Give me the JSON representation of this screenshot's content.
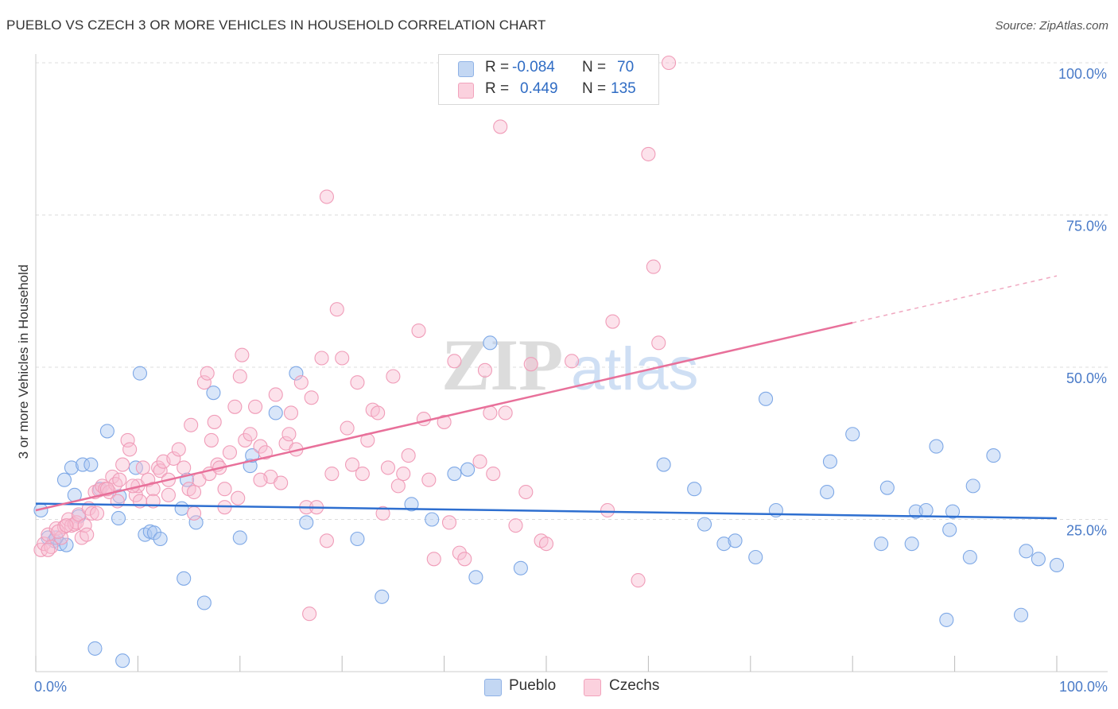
{
  "header": {
    "title": "PUEBLO VS CZECH 3 OR MORE VEHICLES IN HOUSEHOLD CORRELATION CHART",
    "source": "Source: ZipAtlas.com"
  },
  "watermark": {
    "zip": "ZIP",
    "atlas": "atlas"
  },
  "legend_box": {
    "rows": [
      {
        "r_label": "R =",
        "r_value": "-0.084",
        "n_label": "N =",
        "n_value": "70",
        "color": "#a9c6f0"
      },
      {
        "r_label": "R =",
        "r_value": "0.449",
        "n_label": "N =",
        "n_value": "135",
        "color": "#f5b4c7"
      }
    ]
  },
  "bottom_legend": {
    "items": [
      "Pueblo",
      "Czechs"
    ]
  },
  "chart_data": {
    "type": "scatter",
    "title": "PUEBLO VS CZECH 3 OR MORE VEHICLES IN HOUSEHOLD CORRELATION CHART",
    "xlabel": "",
    "ylabel": "3 or more Vehicles in Household",
    "xlim": [
      0,
      100
    ],
    "ylim": [
      0,
      100
    ],
    "x_tick_labels": [
      "0.0%",
      "100.0%"
    ],
    "y_tick_labels": [
      "25.0%",
      "50.0%",
      "75.0%",
      "100.0%"
    ],
    "y_ticks": [
      25,
      50,
      75,
      100
    ],
    "grid": true,
    "legend_position": "top-center",
    "colors": {
      "pueblo": "#6f9fe0",
      "pueblo_line": "#2e6fd0",
      "czechs": "#f08cab",
      "czechs_line": "#e8709a"
    },
    "series": [
      {
        "name": "Pueblo",
        "r": -0.084,
        "n": 70,
        "trend": {
          "x": [
            0,
            100
          ],
          "y": [
            27.6,
            25.2
          ]
        },
        "points": [
          [
            0.5,
            26.5
          ],
          [
            1.2,
            22
          ],
          [
            1.8,
            21.5
          ],
          [
            2.4,
            21
          ],
          [
            2.8,
            31.5
          ],
          [
            3.0,
            20.8
          ],
          [
            3.5,
            33.5
          ],
          [
            3.8,
            29
          ],
          [
            4.2,
            25.5
          ],
          [
            4.6,
            34
          ],
          [
            5.4,
            34
          ],
          [
            6.3,
            30
          ],
          [
            7.0,
            39.5
          ],
          [
            8.1,
            25.2
          ],
          [
            8.2,
            28.8
          ],
          [
            9.8,
            33.5
          ],
          [
            10.2,
            49
          ],
          [
            10.7,
            22.5
          ],
          [
            11.2,
            23
          ],
          [
            11.6,
            22.8
          ],
          [
            12.2,
            21.8
          ],
          [
            14.3,
            26.8
          ],
          [
            14.5,
            15.3
          ],
          [
            14.8,
            31.5
          ],
          [
            15.7,
            24.5
          ],
          [
            16.5,
            11.3
          ],
          [
            17.4,
            45.8
          ],
          [
            20.0,
            22
          ],
          [
            21.0,
            33.8
          ],
          [
            21.2,
            35.5
          ],
          [
            23.5,
            42.5
          ],
          [
            25.5,
            49
          ],
          [
            26.5,
            24.5
          ],
          [
            31.5,
            21.8
          ],
          [
            33.9,
            12.3
          ],
          [
            36.8,
            27.5
          ],
          [
            38.8,
            25
          ],
          [
            41.0,
            32.5
          ],
          [
            42.3,
            33.2
          ],
          [
            43.1,
            15.5
          ],
          [
            44.5,
            54
          ],
          [
            47.5,
            17
          ],
          [
            61.5,
            34
          ],
          [
            64.5,
            30
          ],
          [
            65.5,
            24.2
          ],
          [
            67.4,
            21
          ],
          [
            68.5,
            21.5
          ],
          [
            70.5,
            18.8
          ],
          [
            71.5,
            44.8
          ],
          [
            72.5,
            26.5
          ],
          [
            77.5,
            29.5
          ],
          [
            77.8,
            34.5
          ],
          [
            80.0,
            39
          ],
          [
            82.8,
            21
          ],
          [
            83.4,
            30.2
          ],
          [
            85.8,
            21
          ],
          [
            86.2,
            26.3
          ],
          [
            87.2,
            26.5
          ],
          [
            88.2,
            37
          ],
          [
            89.2,
            8.5
          ],
          [
            89.5,
            23.3
          ],
          [
            89.8,
            26.3
          ],
          [
            91.5,
            18.8
          ],
          [
            91.8,
            30.5
          ],
          [
            93.8,
            35.5
          ],
          [
            96.5,
            9.3
          ],
          [
            97.0,
            19.8
          ],
          [
            98.2,
            18.5
          ],
          [
            100.0,
            17.5
          ],
          [
            2.0,
            22
          ],
          [
            8.5,
            1.8
          ],
          [
            5.8,
            3.8
          ]
        ]
      },
      {
        "name": "Czechs",
        "r": 0.449,
        "n": 135,
        "trend": {
          "x": [
            0,
            80
          ],
          "y": [
            26.5,
            57.3
          ]
        },
        "trend_dashed": {
          "x": [
            80,
            100
          ],
          "y": [
            57.3,
            65
          ]
        },
        "points": [
          [
            0.5,
            20
          ],
          [
            0.8,
            21
          ],
          [
            1.2,
            22.5
          ],
          [
            1.5,
            20.5
          ],
          [
            2.0,
            23.5
          ],
          [
            2.5,
            22
          ],
          [
            2.8,
            23.8
          ],
          [
            3.2,
            25
          ],
          [
            3.5,
            24
          ],
          [
            3.8,
            24.2
          ],
          [
            4.0,
            24.5
          ],
          [
            4.2,
            25.8
          ],
          [
            4.5,
            22
          ],
          [
            4.8,
            24
          ],
          [
            5.2,
            26.8
          ],
          [
            5.5,
            26
          ],
          [
            5.8,
            29.5
          ],
          [
            6.2,
            29.8
          ],
          [
            6.5,
            30.5
          ],
          [
            6.8,
            30
          ],
          [
            7.2,
            29.5
          ],
          [
            7.5,
            32
          ],
          [
            7.8,
            30.8
          ],
          [
            8.0,
            28
          ],
          [
            8.2,
            31.5
          ],
          [
            8.5,
            34
          ],
          [
            9.0,
            38
          ],
          [
            9.2,
            36.5
          ],
          [
            9.8,
            29
          ],
          [
            10.0,
            30.5
          ],
          [
            10.2,
            28
          ],
          [
            10.5,
            33.5
          ],
          [
            11.0,
            31.5
          ],
          [
            11.5,
            30
          ],
          [
            12.0,
            33.5
          ],
          [
            12.2,
            33
          ],
          [
            12.5,
            34.5
          ],
          [
            13.0,
            31.5
          ],
          [
            13.5,
            35
          ],
          [
            14.0,
            36.5
          ],
          [
            14.5,
            33.5
          ],
          [
            15.0,
            30
          ],
          [
            15.2,
            40.5
          ],
          [
            15.5,
            29.5
          ],
          [
            16.0,
            31.5
          ],
          [
            16.5,
            47.5
          ],
          [
            16.8,
            49
          ],
          [
            17.0,
            32.5
          ],
          [
            17.2,
            38
          ],
          [
            17.5,
            41
          ],
          [
            17.8,
            34
          ],
          [
            18.0,
            33.5
          ],
          [
            18.5,
            27
          ],
          [
            19.0,
            36
          ],
          [
            19.5,
            43.5
          ],
          [
            19.8,
            28.5
          ],
          [
            20.0,
            48.5
          ],
          [
            20.2,
            52
          ],
          [
            20.5,
            38
          ],
          [
            21.0,
            39
          ],
          [
            21.5,
            43.5
          ],
          [
            22.0,
            37
          ],
          [
            22.5,
            36
          ],
          [
            23.0,
            32
          ],
          [
            23.5,
            45.5
          ],
          [
            24.0,
            31
          ],
          [
            24.5,
            37.5
          ],
          [
            24.8,
            39
          ],
          [
            25.0,
            42.5
          ],
          [
            25.5,
            36.5
          ],
          [
            26.0,
            47.5
          ],
          [
            26.5,
            27
          ],
          [
            27.0,
            45
          ],
          [
            27.5,
            27
          ],
          [
            28.0,
            51.5
          ],
          [
            28.5,
            78
          ],
          [
            29.0,
            32.5
          ],
          [
            29.5,
            59.5
          ],
          [
            30.0,
            51.5
          ],
          [
            30.5,
            40
          ],
          [
            31.0,
            34
          ],
          [
            31.5,
            47.5
          ],
          [
            32.0,
            32.5
          ],
          [
            32.5,
            38
          ],
          [
            33.0,
            43
          ],
          [
            33.5,
            42.5
          ],
          [
            34.0,
            26
          ],
          [
            34.5,
            33.5
          ],
          [
            35.0,
            48.5
          ],
          [
            35.5,
            30.5
          ],
          [
            36.0,
            32.5
          ],
          [
            36.5,
            35.5
          ],
          [
            37.5,
            56
          ],
          [
            38.0,
            41.5
          ],
          [
            39.0,
            18.5
          ],
          [
            40.0,
            41
          ],
          [
            40.5,
            24.5
          ],
          [
            41.0,
            51
          ],
          [
            41.5,
            19.5
          ],
          [
            42.0,
            18.5
          ],
          [
            43.5,
            34.5
          ],
          [
            44.0,
            49.5
          ],
          [
            44.5,
            42.5
          ],
          [
            44.8,
            32.5
          ],
          [
            45.5,
            89.5
          ],
          [
            46.0,
            42.5
          ],
          [
            47.0,
            24
          ],
          [
            48.0,
            29.5
          ],
          [
            48.5,
            50.5
          ],
          [
            49.5,
            21.5
          ],
          [
            50.0,
            21
          ],
          [
            52.5,
            51
          ],
          [
            56.0,
            26.5
          ],
          [
            56.5,
            57.5
          ],
          [
            59.0,
            15
          ],
          [
            60.0,
            85
          ],
          [
            60.5,
            66.5
          ],
          [
            61.0,
            54
          ],
          [
            62.0,
            100
          ],
          [
            1.2,
            20
          ],
          [
            2.2,
            23
          ],
          [
            3.0,
            24
          ],
          [
            5.0,
            22.5
          ],
          [
            6.0,
            26
          ],
          [
            7.0,
            30
          ],
          [
            9.5,
            30.5
          ],
          [
            11.5,
            28
          ],
          [
            13.0,
            29
          ],
          [
            15.5,
            26
          ],
          [
            18.5,
            30
          ],
          [
            22.0,
            31.5
          ],
          [
            26.8,
            9.5
          ],
          [
            28.5,
            21.5
          ],
          [
            38.5,
            31.5
          ]
        ]
      }
    ]
  }
}
